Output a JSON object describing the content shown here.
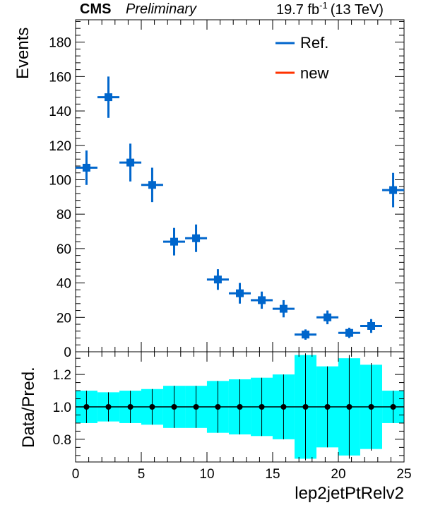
{
  "header": {
    "experiment": "CMS",
    "status": "Preliminary",
    "lumi": "19.7 fb",
    "lumi_exp": "-1",
    "energy": "(13 TeV)"
  },
  "legend": {
    "ref_label": "Ref.",
    "new_label": "new"
  },
  "colors": {
    "ref": "#0066cc",
    "new": "#ff3300",
    "band": "#00ffff",
    "ratio_point": "#000000"
  },
  "chart_data": [
    {
      "type": "scatter",
      "title": "",
      "xlabel": "",
      "ylabel": "Events",
      "xlim": [
        0,
        25
      ],
      "ylim": [
        0,
        193
      ],
      "x_ticks": [
        0,
        5,
        10,
        15,
        20,
        25
      ],
      "y_ticks": [
        0,
        20,
        40,
        60,
        80,
        100,
        120,
        140,
        160,
        180
      ],
      "bin_width": 1.667,
      "series": [
        {
          "name": "Ref.",
          "x": [
            0.83,
            2.5,
            4.17,
            5.83,
            7.5,
            9.17,
            10.83,
            12.5,
            14.17,
            15.83,
            17.5,
            19.17,
            20.83,
            22.5,
            24.17
          ],
          "values": [
            107,
            148,
            110,
            97,
            64,
            66,
            42,
            34,
            30,
            25,
            10,
            20,
            11,
            15,
            94
          ],
          "errors": [
            10,
            12,
            11,
            10,
            8,
            8,
            6,
            6,
            5,
            5,
            3,
            4,
            3,
            4,
            10
          ]
        },
        {
          "name": "new",
          "x": [],
          "values": []
        }
      ]
    },
    {
      "type": "scatter",
      "xlabel": "lep2jetPtRelv2",
      "ylabel": "Data/Pred.",
      "xlim": [
        0,
        25
      ],
      "ylim": [
        0.66,
        1.34
      ],
      "x_ticks": [
        0,
        5,
        10,
        15,
        20,
        25
      ],
      "y_ticks": [
        0.8,
        1.0,
        1.2
      ],
      "x_tick_labels": [
        "0",
        "5",
        "10",
        "15",
        "20",
        "25"
      ],
      "y_tick_labels": [
        "0.8",
        "1.0",
        "1.2"
      ],
      "series": [
        {
          "name": "ratio",
          "x": [
            0.83,
            2.5,
            4.17,
            5.83,
            7.5,
            9.17,
            10.83,
            12.5,
            14.17,
            15.83,
            17.5,
            19.17,
            20.83,
            22.5,
            24.17
          ],
          "values": [
            1,
            1,
            1,
            1,
            1,
            1,
            1,
            1,
            1,
            1,
            1,
            1,
            1,
            1,
            1
          ],
          "errors": [
            0.1,
            0.09,
            0.1,
            0.11,
            0.13,
            0.13,
            0.16,
            0.17,
            0.18,
            0.2,
            0.33,
            0.25,
            0.32,
            0.27,
            0.1
          ]
        },
        {
          "name": "uncertainty band",
          "band_halfwidth": [
            0.1,
            0.09,
            0.1,
            0.11,
            0.13,
            0.13,
            0.16,
            0.17,
            0.18,
            0.2,
            0.32,
            0.25,
            0.3,
            0.26,
            0.1
          ]
        }
      ]
    }
  ]
}
